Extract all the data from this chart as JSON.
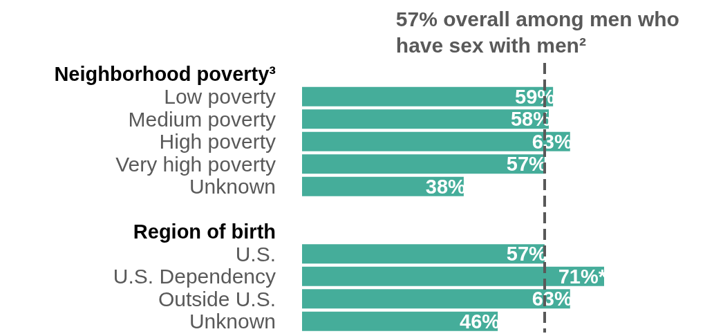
{
  "chart_data": {
    "type": "bar",
    "orientation": "horizontal",
    "tick_labels": "y",
    "categories": [
      "Neighborhood poverty³",
      "Low poverty",
      "Medium poverty",
      "High poverty",
      "Very high poverty",
      "Unknown",
      null,
      "Region of birth",
      "U.S.",
      "U.S. Dependency",
      "Outside U.S.",
      "Unknown"
    ],
    "values": [
      null,
      59,
      58,
      63,
      57,
      38,
      null,
      null,
      57,
      71,
      63,
      46
    ],
    "value_labels": [
      null,
      "59%",
      "58%",
      "63%",
      "57%",
      "38%",
      null,
      null,
      "57%",
      "71%*",
      "63%",
      "46%"
    ],
    "color": "#45ad9a",
    "ref_lines": [
      {
        "axis": "x",
        "value": 57,
        "label": "57% overall among men who have sex with men²",
        "color": "#595959",
        "line_style": "dashed"
      }
    ]
  }
}
